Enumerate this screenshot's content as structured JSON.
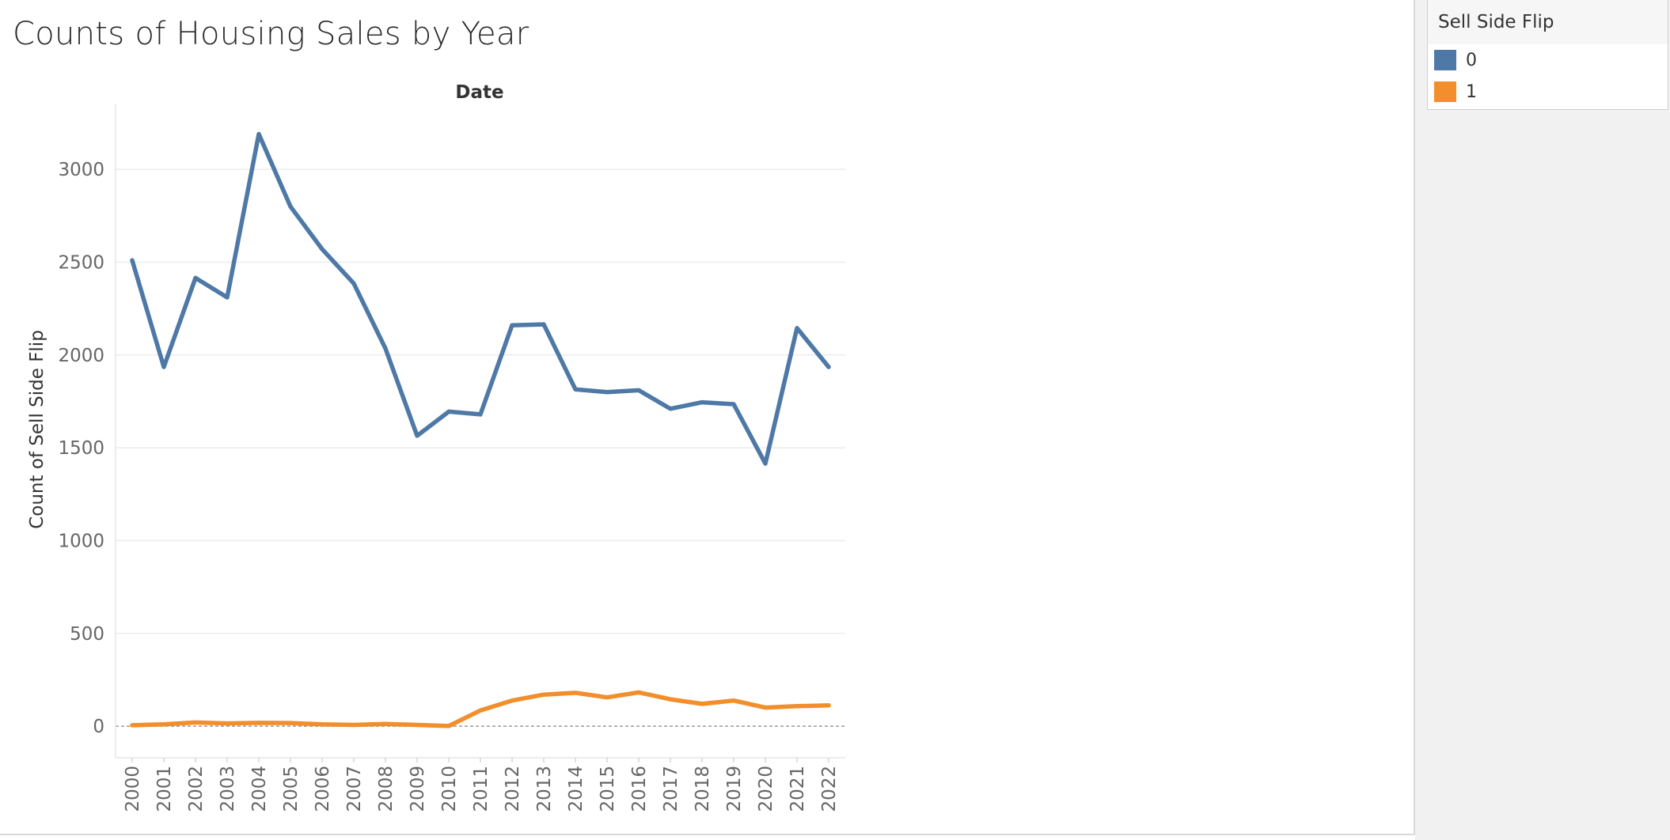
{
  "legend": {
    "title": "Sell Side Flip",
    "items": [
      {
        "label": "0",
        "color": "#4e79a7"
      },
      {
        "label": "1",
        "color": "#f28e2b"
      }
    ]
  },
  "chart_data": {
    "type": "line",
    "title": "Counts of Housing Sales by Year",
    "xlabel": "Date",
    "ylabel": "Count of Sell Side Flip",
    "x": [
      "2000",
      "2001",
      "2002",
      "2003",
      "2004",
      "2005",
      "2006",
      "2007",
      "2008",
      "2009",
      "2010",
      "2011",
      "2012",
      "2013",
      "2014",
      "2015",
      "2016",
      "2017",
      "2018",
      "2019",
      "2020",
      "2021",
      "2022"
    ],
    "series": [
      {
        "name": "0",
        "color": "#4e79a7",
        "values": [
          2510,
          1935,
          2415,
          2310,
          3190,
          2800,
          2570,
          2385,
          2035,
          1565,
          1695,
          1680,
          2160,
          2165,
          1815,
          1800,
          1810,
          1710,
          1745,
          1735,
          1415,
          2145,
          1935
        ]
      },
      {
        "name": "1",
        "color": "#f28e2b",
        "values": [
          5,
          10,
          20,
          15,
          18,
          17,
          10,
          7,
          12,
          7,
          1,
          85,
          138,
          170,
          180,
          155,
          182,
          145,
          120,
          138,
          100,
          108,
          112
        ]
      }
    ],
    "yticks": [
      0,
      500,
      1000,
      1500,
      2000,
      2500,
      3000
    ],
    "ylim": [
      -170,
      3350
    ],
    "grid": true,
    "zero_line": true,
    "legend_position": "right"
  }
}
